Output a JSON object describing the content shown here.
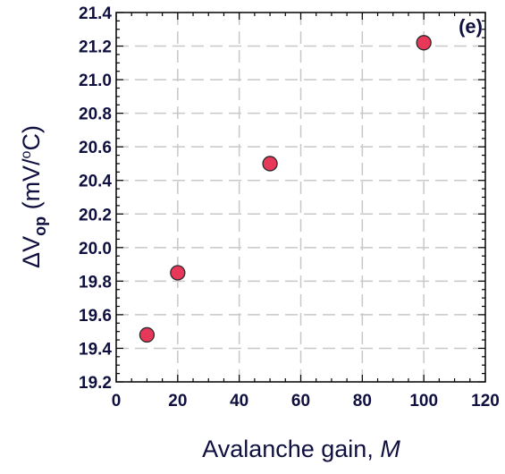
{
  "chart_data": {
    "type": "scatter",
    "panel_label": "(e)",
    "ylabel_main": "ΔV",
    "ylabel_sub": "op",
    "ylabel_rest": " (mV/",
    "ylabel_degree": "o",
    "ylabel_end": "C)",
    "xlabel_main": "Avalanche gain, ",
    "xlabel_var": "M",
    "xlim": [
      0,
      120
    ],
    "ylim": [
      19.2,
      21.4
    ],
    "x_ticks": [
      "0",
      "20",
      "40",
      "60",
      "80",
      "100",
      "120"
    ],
    "y_ticks": [
      "19.2",
      "19.4",
      "19.6",
      "19.8",
      "20.0",
      "20.2",
      "20.4",
      "20.6",
      "20.8",
      "21.0",
      "21.2",
      "21.4"
    ],
    "grid": true,
    "marker_color": "#e8385a",
    "points": [
      {
        "x": 10,
        "y": 19.48
      },
      {
        "x": 20,
        "y": 19.85
      },
      {
        "x": 50,
        "y": 20.5
      },
      {
        "x": 100,
        "y": 21.22
      }
    ]
  }
}
